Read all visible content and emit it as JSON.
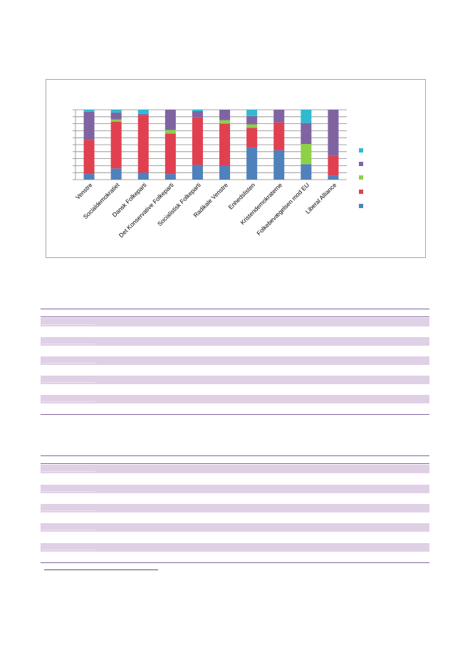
{
  "chart_data": {
    "type": "bar",
    "stacked": true,
    "categories": [
      "Venstre",
      "Socialdemokratiet",
      "Dansk Folkeparti",
      "Det Konservative Folkeparti",
      "Socialistisk Folkeparti",
      "Radikale Venstre",
      "Enhedslisten",
      "Kristendemokraterne",
      "Folkebevægelsen mod EU",
      "Liberal Alliance"
    ],
    "series": [
      {
        "color": "#4f81bd",
        "values": [
          8,
          16,
          10,
          8,
          21,
          20,
          46,
          42,
          22,
          6
        ]
      },
      {
        "color": "#e04050",
        "values": [
          49,
          67,
          82,
          58,
          68,
          60,
          28,
          40,
          0,
          28
        ]
      },
      {
        "color": "#8dd147",
        "values": [
          0,
          3,
          0,
          5,
          0,
          5,
          5,
          0,
          29,
          0
        ]
      },
      {
        "color": "#8064a2",
        "values": [
          40,
          10,
          2,
          29,
          9,
          15,
          12,
          18,
          30,
          66
        ]
      },
      {
        "color": "#31b9d0",
        "values": [
          3,
          4,
          6,
          0,
          2,
          0,
          9,
          0,
          19,
          0
        ]
      }
    ],
    "ylim": [
      0,
      100
    ],
    "gridlines": 10,
    "grid": true,
    "legend": "right"
  },
  "tables": [
    {
      "name": "table-1",
      "band_count": 5
    },
    {
      "name": "table-2",
      "band_count": 5
    }
  ]
}
